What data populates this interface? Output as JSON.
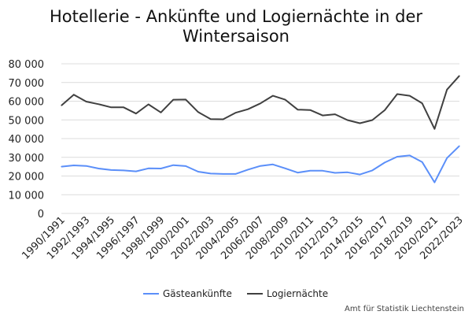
{
  "chart_data": {
    "type": "line",
    "title_lines": [
      "Hotellerie - Ankünfte und Logiernächte in der",
      "Wintersaison"
    ],
    "xlabel": "",
    "ylabel": "",
    "ylim": [
      0,
      80000
    ],
    "yticks": [
      0,
      10000,
      20000,
      30000,
      40000,
      50000,
      60000,
      70000,
      80000
    ],
    "ytick_labels": [
      "0",
      "10 000",
      "20 000",
      "30 000",
      "40 000",
      "50 000",
      "60 000",
      "70 000",
      "80 000"
    ],
    "x": [
      "1990/1991",
      "1991/1992",
      "1992/1993",
      "1993/1994",
      "1994/1995",
      "1995/1996",
      "1996/1997",
      "1997/1998",
      "1998/1999",
      "1999/2000",
      "2000/2001",
      "2001/2002",
      "2002/2003",
      "2003/2004",
      "2004/2005",
      "2005/2006",
      "2006/2007",
      "2007/2008",
      "2008/2009",
      "2009/2010",
      "2010/2011",
      "2011/2012",
      "2012/2013",
      "2013/2014",
      "2014/2015",
      "2015/2016",
      "2016/2017",
      "2017/2018",
      "2018/2019",
      "2019/2020",
      "2020/2021",
      "2021/2022",
      "2022/2023"
    ],
    "xtick_labels": [
      "1990/1991",
      "1992/1993",
      "1994/1995",
      "1996/1997",
      "1998/1999",
      "2000/2001",
      "2002/2003",
      "2004/2005",
      "2006/2007",
      "2008/2009",
      "2010/2011",
      "2012/2013",
      "2014/2015",
      "2016/2017",
      "2018/2019",
      "2020/2021",
      "2022/2023"
    ],
    "grid": true,
    "legend_position": "bottom",
    "series": [
      {
        "name": "Gästeankünfte",
        "color": "#5b8ff9",
        "values": [
          25000,
          25700,
          25400,
          24000,
          23200,
          23000,
          22500,
          24100,
          24000,
          25800,
          25300,
          22300,
          21300,
          21100,
          21100,
          23400,
          25400,
          26200,
          24100,
          21800,
          22800,
          22800,
          21700,
          22000,
          20800,
          23000,
          27200,
          30300,
          31000,
          27500,
          16600,
          29600,
          36100
        ]
      },
      {
        "name": "Logiernächte",
        "color": "#404040",
        "values": [
          57700,
          63500,
          59800,
          58400,
          56700,
          56700,
          53400,
          58300,
          54000,
          60800,
          60900,
          54200,
          50400,
          50300,
          53800,
          55700,
          58800,
          62900,
          60800,
          55500,
          55300,
          52400,
          53000,
          49900,
          48200,
          49900,
          55200,
          63800,
          62900,
          58900,
          45200,
          66200,
          73600
        ]
      }
    ],
    "source": "Amt für Statistik Liechtenstein"
  }
}
